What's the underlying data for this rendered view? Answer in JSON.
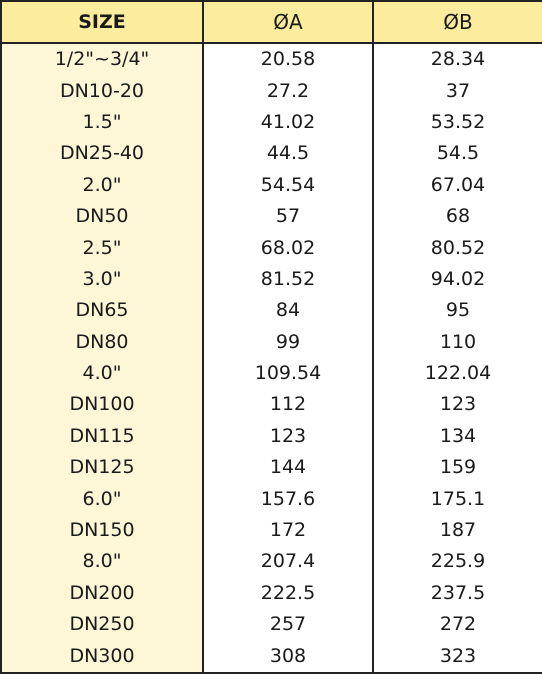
{
  "table": {
    "headers": {
      "size": "SIZE",
      "a": "ØA",
      "b": "ØB"
    },
    "rows": [
      {
        "size": "1/2\"~3/4\"",
        "a": "20.58",
        "b": "28.34"
      },
      {
        "size": "DN10-20",
        "a": "27.2",
        "b": "37"
      },
      {
        "size": "1.5\"",
        "a": "41.02",
        "b": "53.52"
      },
      {
        "size": "DN25-40",
        "a": "44.5",
        "b": "54.5"
      },
      {
        "size": "2.0\"",
        "a": "54.54",
        "b": "67.04"
      },
      {
        "size": "DN50",
        "a": "57",
        "b": "68"
      },
      {
        "size": "2.5\"",
        "a": "68.02",
        "b": "80.52"
      },
      {
        "size": "3.0\"",
        "a": "81.52",
        "b": "94.02"
      },
      {
        "size": "DN65",
        "a": "84",
        "b": "95"
      },
      {
        "size": "DN80",
        "a": "99",
        "b": "110"
      },
      {
        "size": "4.0\"",
        "a": "109.54",
        "b": "122.04"
      },
      {
        "size": "DN100",
        "a": "112",
        "b": "123"
      },
      {
        "size": "DN115",
        "a": "123",
        "b": "134"
      },
      {
        "size": "DN125",
        "a": "144",
        "b": "159"
      },
      {
        "size": "6.0\"",
        "a": "157.6",
        "b": "175.1"
      },
      {
        "size": "DN150",
        "a": "172",
        "b": "187"
      },
      {
        "size": "8.0\"",
        "a": "207.4",
        "b": "225.9"
      },
      {
        "size": "DN200",
        "a": "222.5",
        "b": "237.5"
      },
      {
        "size": "DN250",
        "a": "257",
        "b": "272"
      },
      {
        "size": "DN300",
        "a": "308",
        "b": "323"
      }
    ]
  },
  "colors": {
    "header_bg": "#fcec9e",
    "size_column_bg": "#fdf7d8",
    "border": "#222222"
  }
}
